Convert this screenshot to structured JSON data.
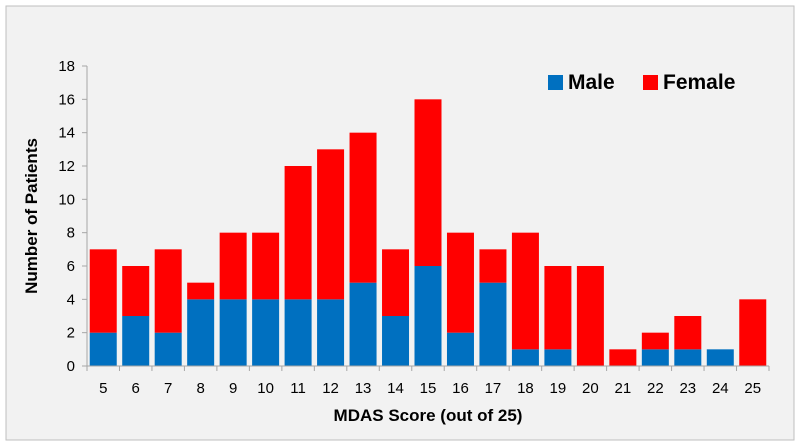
{
  "chart_data": {
    "type": "bar",
    "stacked": true,
    "title": "",
    "xlabel": "MDAS Score (out of 25)",
    "ylabel": "Number of Patients",
    "ylim": [
      0,
      18
    ],
    "yticks": [
      0,
      2,
      4,
      6,
      8,
      10,
      12,
      14,
      16,
      18
    ],
    "grid": false,
    "legend_position": "top-right",
    "categories": [
      "5",
      "6",
      "7",
      "8",
      "9",
      "10",
      "11",
      "12",
      "13",
      "14",
      "15",
      "16",
      "17",
      "18",
      "19",
      "20",
      "21",
      "22",
      "23",
      "24",
      "25"
    ],
    "series": [
      {
        "name": "Male",
        "color": "#0070c0",
        "values": [
          2,
          3,
          2,
          4,
          4,
          4,
          4,
          4,
          5,
          3,
          6,
          2,
          5,
          1,
          1,
          0,
          0,
          1,
          1,
          1,
          0
        ]
      },
      {
        "name": "Female",
        "color": "#ff0000",
        "values": [
          5,
          3,
          5,
          1,
          4,
          4,
          8,
          9,
          9,
          4,
          10,
          6,
          2,
          7,
          5,
          6,
          1,
          1,
          2,
          0,
          4
        ]
      }
    ]
  },
  "colors": {
    "panel_background": "#f2f2f2",
    "panel_border": "#bfbfbf",
    "axis_line": "#a6a6a6"
  }
}
